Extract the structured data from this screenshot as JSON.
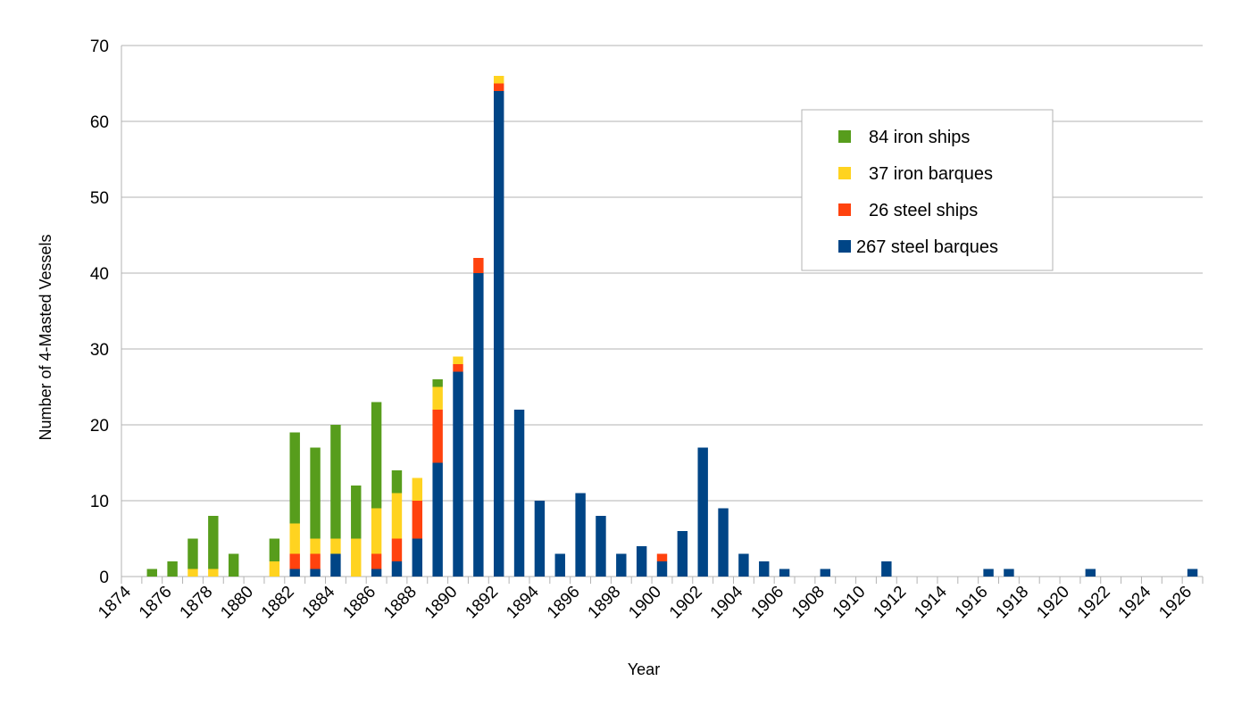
{
  "chart_data": {
    "type": "bar",
    "stacked": true,
    "title": "",
    "xlabel": "Year",
    "ylabel": "Number of 4-Masted Vessels",
    "ylim": [
      0,
      70
    ],
    "yticks": [
      0,
      10,
      20,
      30,
      40,
      50,
      60,
      70
    ],
    "grid": true,
    "legend_position": "top-right",
    "x_tick_labels": [
      "1874",
      "1876",
      "1878",
      "1880",
      "1882",
      "1884",
      "1886",
      "1888",
      "1890",
      "1892",
      "1894",
      "1896",
      "1898",
      "1900",
      "1902",
      "1904",
      "1906",
      "1908",
      "1910",
      "1912",
      "1914",
      "1916",
      "1918",
      "1920",
      "1922",
      "1924",
      "1926"
    ],
    "categories": [
      "1874",
      "1875",
      "1876",
      "1877",
      "1878",
      "1879",
      "1880",
      "1881",
      "1882",
      "1883",
      "1884",
      "1885",
      "1886",
      "1887",
      "1888",
      "1889",
      "1890",
      "1891",
      "1892",
      "1893",
      "1894",
      "1895",
      "1896",
      "1897",
      "1898",
      "1899",
      "1900",
      "1901",
      "1902",
      "1903",
      "1904",
      "1905",
      "1906",
      "1907",
      "1908",
      "1909",
      "1910",
      "1911",
      "1912",
      "1913",
      "1914",
      "1915",
      "1916",
      "1917",
      "1918",
      "1919",
      "1920",
      "1921",
      "1922",
      "1923",
      "1924",
      "1925",
      "1926"
    ],
    "series": [
      {
        "name": "267 steel barques",
        "color": "#004586",
        "values": [
          0,
          0,
          0,
          0,
          0,
          0,
          0,
          0,
          1,
          1,
          3,
          0,
          1,
          2,
          5,
          15,
          27,
          40,
          64,
          22,
          10,
          3,
          11,
          8,
          3,
          4,
          2,
          6,
          17,
          9,
          3,
          2,
          1,
          0,
          1,
          0,
          0,
          2,
          0,
          0,
          0,
          0,
          1,
          1,
          0,
          0,
          0,
          1,
          0,
          0,
          0,
          0,
          1
        ]
      },
      {
        "name": "26 steel ships",
        "color": "#ff420e",
        "values": [
          0,
          0,
          0,
          0,
          0,
          0,
          0,
          0,
          2,
          2,
          0,
          0,
          2,
          3,
          5,
          7,
          1,
          2,
          1,
          0,
          0,
          0,
          0,
          0,
          0,
          0,
          1,
          0,
          0,
          0,
          0,
          0,
          0,
          0,
          0,
          0,
          0,
          0,
          0,
          0,
          0,
          0,
          0,
          0,
          0,
          0,
          0,
          0,
          0,
          0,
          0,
          0,
          0
        ]
      },
      {
        "name": "37 iron barques",
        "color": "#ffd320",
        "values": [
          0,
          0,
          0,
          1,
          1,
          0,
          0,
          2,
          4,
          2,
          2,
          5,
          6,
          6,
          3,
          3,
          1,
          0,
          1,
          0,
          0,
          0,
          0,
          0,
          0,
          0,
          0,
          0,
          0,
          0,
          0,
          0,
          0,
          0,
          0,
          0,
          0,
          0,
          0,
          0,
          0,
          0,
          0,
          0,
          0,
          0,
          0,
          0,
          0,
          0,
          0,
          0,
          0
        ]
      },
      {
        "name": "84 iron ships",
        "color": "#579d1c",
        "values": [
          0,
          1,
          2,
          4,
          7,
          3,
          0,
          3,
          12,
          12,
          15,
          7,
          14,
          3,
          0,
          1,
          0,
          0,
          0,
          0,
          0,
          0,
          0,
          0,
          0,
          0,
          0,
          0,
          0,
          0,
          0,
          0,
          0,
          0,
          0,
          0,
          0,
          0,
          0,
          0,
          0,
          0,
          0,
          0,
          0,
          0,
          0,
          0,
          0,
          0,
          0,
          0,
          0
        ]
      }
    ],
    "legend_order": [
      "84 iron ships",
      "37 iron barques",
      "26 steel ships",
      "267 steel barques"
    ]
  }
}
